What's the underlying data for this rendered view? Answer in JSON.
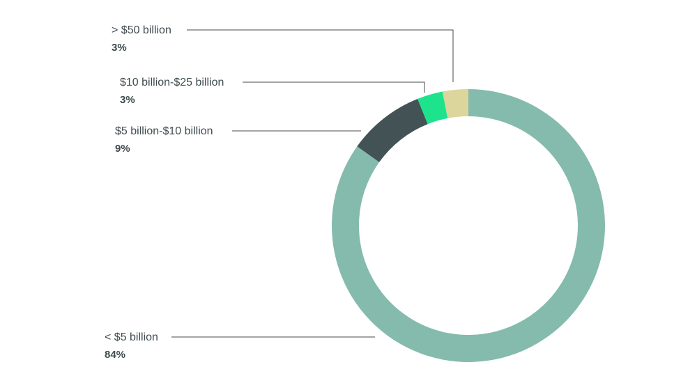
{
  "chart_data": {
    "type": "pie",
    "style": "donut",
    "title": "",
    "slices": [
      {
        "label": "< $5 billion",
        "value_label": "84%",
        "value": 84,
        "color": "#85bbad"
      },
      {
        "label": "$5 billion-$10 billion",
        "value_label": "9%",
        "value": 9,
        "color": "#435255"
      },
      {
        "label": "$10 billion-$25 billion",
        "value_label": "3%",
        "value": 3,
        "color": "#1de38c"
      },
      {
        "label": "> $50 billion",
        "value_label": "3%",
        "value": 3,
        "color": "#dcd59c"
      }
    ]
  }
}
